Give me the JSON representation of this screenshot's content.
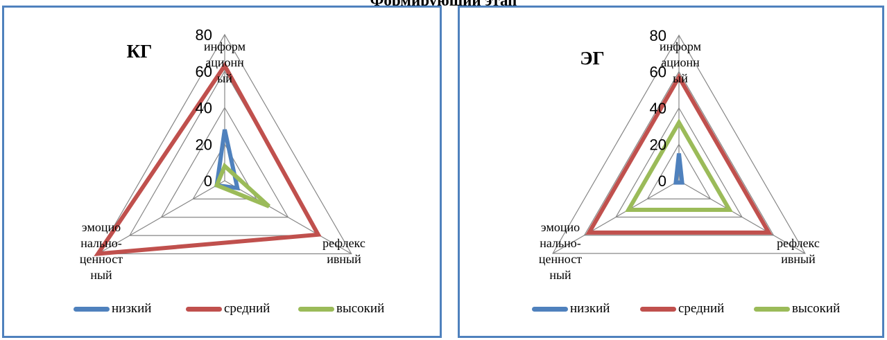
{
  "page": {
    "title": "Формирующий этап"
  },
  "chart_data": [
    {
      "type": "radar",
      "title": "КГ",
      "axes": [
        "информ\nационн\nый",
        "рефлекс\nивный",
        "эмоцио\nнально-\nценност\nный"
      ],
      "ticks": [
        "0",
        "20",
        "40",
        "60",
        "80"
      ],
      "rlim": [
        0,
        80
      ],
      "grid": true,
      "legend": "bottom",
      "series": [
        {
          "name": "низкий",
          "color": "#4f81bd",
          "values": [
            28,
            8,
            5
          ]
        },
        {
          "name": "средний",
          "color": "#c0504d",
          "values": [
            63,
            59,
            80
          ]
        },
        {
          "name": "высокий",
          "color": "#9bbb59",
          "values": [
            8,
            28,
            5
          ]
        }
      ]
    },
    {
      "type": "radar",
      "title": "ЭГ",
      "axes": [
        "информ\nационн\nый",
        "рефлекс\nивный",
        "эмоцио\nнально-\nценност\nный"
      ],
      "ticks": [
        "0",
        "20",
        "40",
        "60",
        "80"
      ],
      "rlim": [
        0,
        80
      ],
      "grid": true,
      "legend": "bottom",
      "series": [
        {
          "name": "низкий",
          "color": "#4f81bd",
          "values": [
            15,
            2,
            2
          ]
        },
        {
          "name": "средний",
          "color": "#c0504d",
          "values": [
            57,
            57,
            57
          ]
        },
        {
          "name": "высокий",
          "color": "#9bbb59",
          "values": [
            32,
            32,
            32
          ]
        }
      ]
    }
  ]
}
